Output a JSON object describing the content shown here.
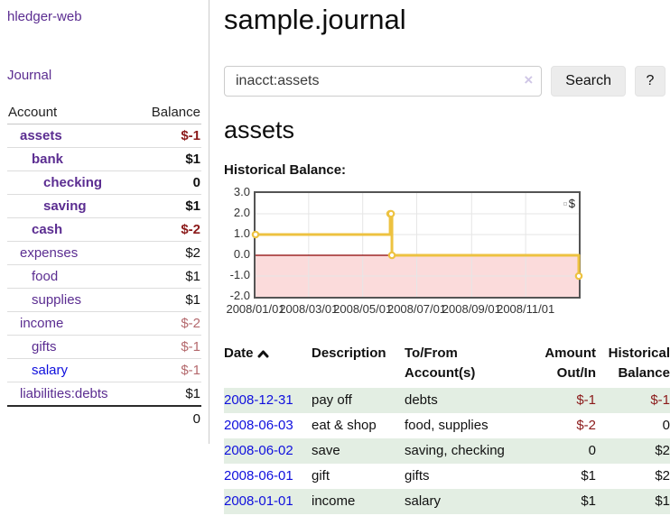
{
  "app": {
    "brand": "hledger-web",
    "nav_journal": "Journal"
  },
  "sidebar": {
    "headers": {
      "account": "Account",
      "balance": "Balance"
    },
    "accounts": [
      {
        "name": "assets",
        "depth": 1,
        "balance": "$-1",
        "bold": true,
        "negative": "strong"
      },
      {
        "name": "bank",
        "depth": 2,
        "balance": "$1",
        "bold": true
      },
      {
        "name": "checking",
        "depth": 3,
        "balance": "0",
        "bold": true
      },
      {
        "name": "saving",
        "depth": 3,
        "balance": "$1",
        "bold": true
      },
      {
        "name": "cash",
        "depth": 2,
        "balance": "$-2",
        "bold": true,
        "negative": "strong"
      },
      {
        "name": "expenses",
        "depth": 1,
        "balance": "$2"
      },
      {
        "name": "food",
        "depth": 2,
        "balance": "$1"
      },
      {
        "name": "supplies",
        "depth": 2,
        "balance": "$1"
      },
      {
        "name": "income",
        "depth": 1,
        "balance": "$-2",
        "negative": "faded"
      },
      {
        "name": "gifts",
        "depth": 2,
        "balance": "$-1",
        "negative": "faded"
      },
      {
        "name": "salary",
        "depth": 2,
        "balance": "$-1",
        "negative": "faded",
        "link_style": "unvisited"
      },
      {
        "name": "liabilities:debts",
        "depth": 1,
        "balance": "$1"
      }
    ],
    "total": "0"
  },
  "header": {
    "title": "sample.journal"
  },
  "search": {
    "value": "inacct:assets",
    "clear_icon": "×",
    "search_button": "Search",
    "help_button": "?"
  },
  "account_page": {
    "heading": "assets",
    "chart_label": "Historical Balance:"
  },
  "chart_data": {
    "type": "line",
    "step": true,
    "title": "Historical Balance",
    "series": [
      {
        "name": "$",
        "color": "#EDC240",
        "points": [
          [
            "2008-01-01",
            1
          ],
          [
            "2008-06-01",
            2
          ],
          [
            "2008-06-02",
            2
          ],
          [
            "2008-06-03",
            0
          ],
          [
            "2008-12-31",
            -1
          ]
        ]
      }
    ],
    "xrange": [
      "2008-01-01",
      "2008-12-31"
    ],
    "ylim": [
      -2,
      3
    ],
    "yticks": [
      "3.0",
      "2.0",
      "1.0",
      "0.0",
      "-1.0",
      "-2.0"
    ],
    "ytick_values": [
      3,
      2,
      1,
      0,
      -1,
      -2
    ],
    "xticks": [
      "2008/01/01",
      "2008/03/01",
      "2008/05/01",
      "2008/07/01",
      "2008/09/01",
      "2008/11/01"
    ],
    "grid": true,
    "gridline_color": "#e6e6e6",
    "border_color": "#545454",
    "zero_line_color": "#8b0000",
    "negative_region_color": "#fbdbdb",
    "legend_position": "top-right",
    "legend_label": "$"
  },
  "register": {
    "headers": [
      {
        "label": "Date",
        "sortable": true
      },
      {
        "label": "Description"
      },
      {
        "label": "To/From Account(s)"
      },
      {
        "label": "Amount Out/In",
        "align": "right"
      },
      {
        "label": "Historical Balance",
        "align": "right"
      }
    ],
    "rows": [
      {
        "date": "2008-12-31",
        "description": "pay off",
        "accounts": "debts",
        "amount": "$-1",
        "amount_negative": true,
        "balance": "$-1",
        "balance_negative": true
      },
      {
        "date": "2008-06-03",
        "description": "eat & shop",
        "accounts": "food, supplies",
        "amount": "$-2",
        "amount_negative": true,
        "balance": "0"
      },
      {
        "date": "2008-06-02",
        "description": "save",
        "accounts": "saving, checking",
        "amount": "0",
        "balance": "$2"
      },
      {
        "date": "2008-06-01",
        "description": "gift",
        "accounts": "gifts",
        "amount": "$1",
        "balance": "$2"
      },
      {
        "date": "2008-01-01",
        "description": "income",
        "accounts": "salary",
        "amount": "$1",
        "balance": "$1"
      }
    ]
  }
}
